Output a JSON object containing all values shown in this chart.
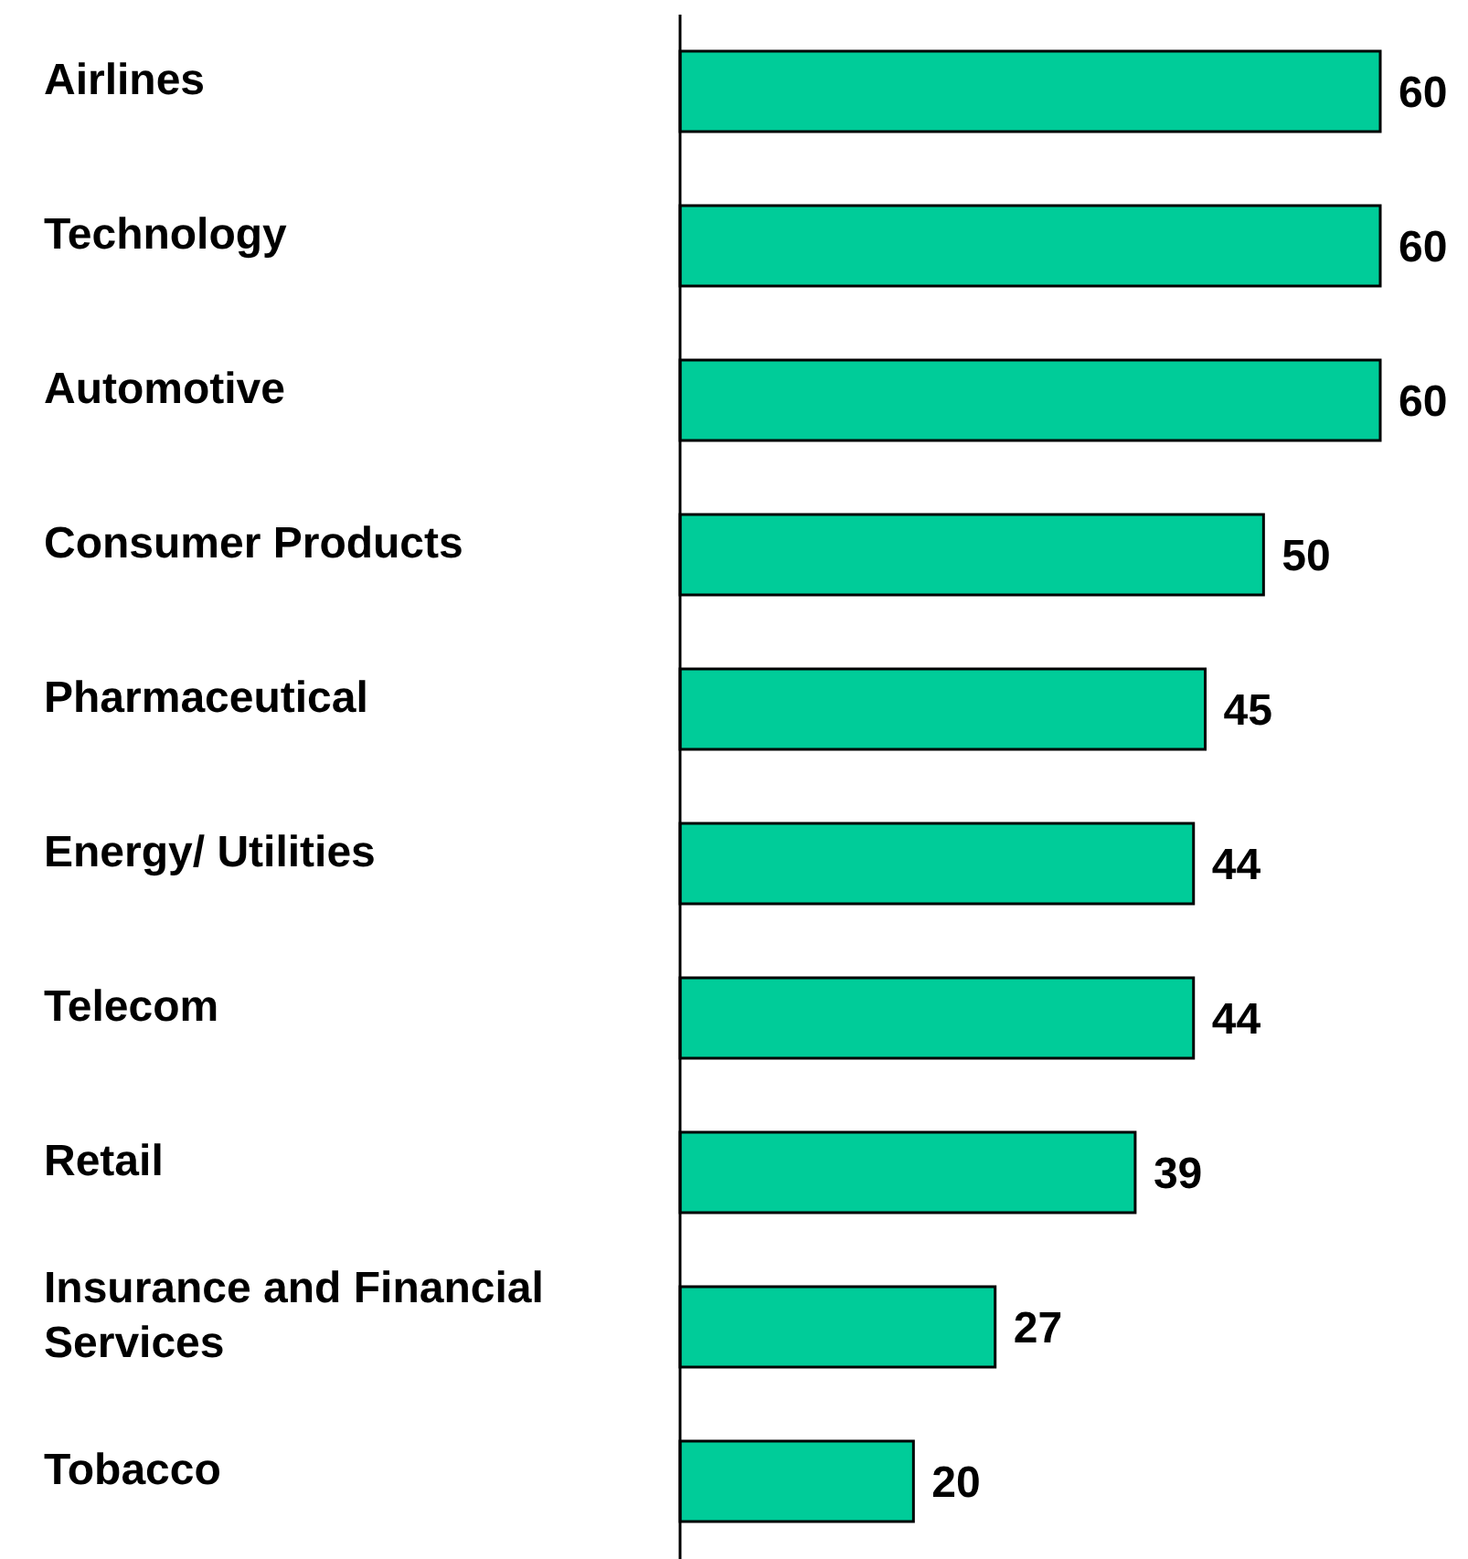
{
  "chart_data": {
    "type": "bar",
    "orientation": "horizontal",
    "categories": [
      "Airlines",
      "Technology",
      "Automotive",
      "Consumer Products",
      "Pharmaceutical",
      "Energy/ Utilities",
      "Telecom",
      "Retail",
      "Insurance and Financial Services",
      "Tobacco"
    ],
    "values": [
      60,
      60,
      60,
      50,
      45,
      44,
      44,
      39,
      27,
      20
    ],
    "color": "#00cc99",
    "data_labels": true,
    "tick_labels": "y",
    "grid": false,
    "legend": false
  }
}
